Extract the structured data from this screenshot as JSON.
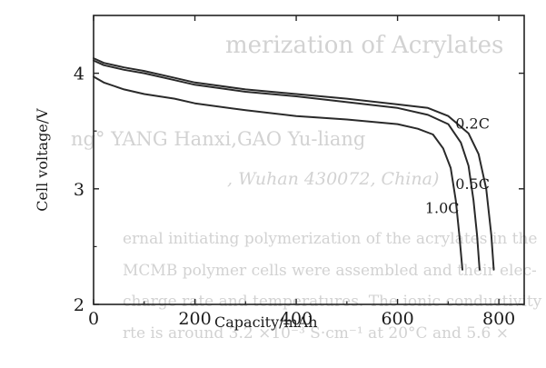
{
  "background_text": {
    "line1": "merization of Acrylates",
    "line2": "ng° YANG Hanxi,GAO Yu-liang",
    "line3": ", Wuhan 430072, China)",
    "line4": "ernal initiating polymerization of the acrylates in the",
    "line5": "MCMB polymer cells were assembled and their elec-",
    "line6": "charge rate and temperatures. The ionic conductivity",
    "line7": "rte is around 3.2 ×10⁻³ S·cm⁻¹ at 20°C and 5.6 ×"
  },
  "colors": {
    "axis": "#222222",
    "curve": "#2a2a2a",
    "ghost_text": "#d2d2d2"
  },
  "chart_data": {
    "type": "line",
    "title": "",
    "xlabel": "Capacity/mAh",
    "ylabel": "Cell voltage/V",
    "xlim": [
      0,
      850
    ],
    "ylim": [
      2,
      4.5
    ],
    "xticks": [
      0,
      200,
      400,
      600,
      800
    ],
    "xtick_labels": [
      "0",
      "200",
      "400",
      "600",
      "800"
    ],
    "yticks": [
      2,
      3,
      4
    ],
    "ytick_labels": [
      "2",
      "3",
      "4"
    ],
    "grid": false,
    "series": [
      {
        "name": "0.2C",
        "x": [
          0,
          20,
          60,
          100,
          160,
          200,
          300,
          400,
          500,
          600,
          660,
          700,
          740,
          760,
          775,
          785,
          790
        ],
        "y": [
          4.13,
          4.09,
          4.05,
          4.02,
          3.96,
          3.92,
          3.86,
          3.82,
          3.78,
          3.73,
          3.7,
          3.63,
          3.48,
          3.3,
          3.0,
          2.6,
          2.3
        ]
      },
      {
        "name": "0.5C",
        "x": [
          0,
          20,
          60,
          100,
          160,
          200,
          300,
          400,
          500,
          600,
          660,
          700,
          725,
          740,
          750,
          757,
          762
        ],
        "y": [
          4.11,
          4.07,
          4.03,
          4.0,
          3.94,
          3.9,
          3.84,
          3.8,
          3.75,
          3.7,
          3.64,
          3.56,
          3.4,
          3.2,
          2.9,
          2.6,
          2.3
        ]
      },
      {
        "name": "1.0C",
        "x": [
          0,
          20,
          60,
          100,
          160,
          200,
          300,
          400,
          500,
          600,
          640,
          670,
          690,
          705,
          715,
          722,
          728
        ],
        "y": [
          3.97,
          3.92,
          3.86,
          3.82,
          3.78,
          3.74,
          3.68,
          3.63,
          3.6,
          3.56,
          3.52,
          3.47,
          3.35,
          3.18,
          2.9,
          2.6,
          2.3
        ]
      }
    ],
    "series_label_positions": [
      {
        "x": 748,
        "y": 3.52
      },
      {
        "x": 748,
        "y": 3.0
      },
      {
        "x": 688,
        "y": 2.79
      }
    ]
  }
}
